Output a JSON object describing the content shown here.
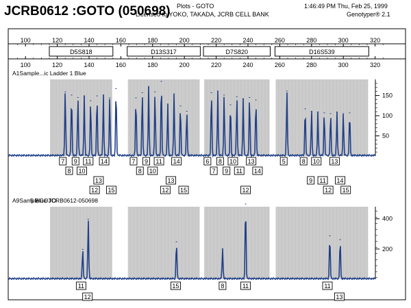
{
  "header": {
    "title": "JCRB0612 :GOTO (050698)",
    "plot_label": "Plots - GOTO",
    "license": "Licensed to YOKO, TAKADA, JCRB CELL BANK",
    "timestamp": "1:46:49 PM  Thu, Feb 25, 1999",
    "software": "Genotyper®  2.1"
  },
  "ruler": {
    "ticks": [
      "100",
      "120",
      "140",
      "160",
      "180",
      "200",
      "220",
      "240",
      "260",
      "280",
      "300",
      "320"
    ],
    "markers": [
      {
        "name": "D5S818",
        "start": 115,
        "end": 155
      },
      {
        "name": "D13S317",
        "start": 164,
        "end": 210
      },
      {
        "name": "D7S820",
        "start": 212,
        "end": 254
      },
      {
        "name": "D16S539",
        "start": 257,
        "end": 316
      }
    ],
    "color": "#000000"
  },
  "panels": [
    {
      "label": "A1Sample...ic Ladder  1 Blue",
      "label2": "",
      "y_ticks": [
        "150",
        "100",
        "50"
      ],
      "y_max": 190,
      "line_color": "#1f3f88",
      "shade_color": "#cccccc",
      "peaks": [
        {
          "bp": 125.0,
          "h": 160
        },
        {
          "bp": 129.0,
          "h": 152
        },
        {
          "bp": 133.0,
          "h": 146
        },
        {
          "bp": 137.0,
          "h": 148
        },
        {
          "bp": 141.0,
          "h": 138
        },
        {
          "bp": 145.0,
          "h": 150
        },
        {
          "bp": 149.0,
          "h": 152
        },
        {
          "bp": 153.0,
          "h": 145
        },
        {
          "bp": 157.0,
          "h": 168
        },
        {
          "bp": 169.5,
          "h": 145
        },
        {
          "bp": 173.5,
          "h": 158
        },
        {
          "bp": 177.5,
          "h": 170
        },
        {
          "bp": 181.5,
          "h": 160
        },
        {
          "bp": 185.5,
          "h": 186
        },
        {
          "bp": 189.5,
          "h": 130
        },
        {
          "bp": 193.5,
          "h": 155
        },
        {
          "bp": 197.5,
          "h": 125
        },
        {
          "bp": 201.5,
          "h": 112
        },
        {
          "bp": 217.0,
          "h": 158
        },
        {
          "bp": 221.0,
          "h": 162
        },
        {
          "bp": 225.0,
          "h": 152
        },
        {
          "bp": 229.0,
          "h": 128
        },
        {
          "bp": 233.0,
          "h": 148
        },
        {
          "bp": 237.0,
          "h": 142
        },
        {
          "bp": 241.0,
          "h": 146
        },
        {
          "bp": 245.0,
          "h": 140
        },
        {
          "bp": 264.5,
          "h": 162
        },
        {
          "bp": 276.0,
          "h": 118
        },
        {
          "bp": 280.0,
          "h": 112
        },
        {
          "bp": 284.0,
          "h": 110
        },
        {
          "bp": 288.0,
          "h": 108
        },
        {
          "bp": 292.0,
          "h": 106
        },
        {
          "bp": 296.0,
          "h": 110
        },
        {
          "bp": 300.0,
          "h": 106
        },
        {
          "bp": 304.0,
          "h": 108
        }
      ],
      "alleles": [
        {
          "label": "7",
          "bp": 123.5,
          "row": 0
        },
        {
          "label": "8",
          "bp": 127.5,
          "row": 1
        },
        {
          "label": "9",
          "bp": 131.5,
          "row": 0
        },
        {
          "label": "10",
          "bp": 135.5,
          "row": 1
        },
        {
          "label": "11",
          "bp": 139.5,
          "row": 0
        },
        {
          "label": "12",
          "bp": 143.5,
          "row": 3
        },
        {
          "label": "13",
          "bp": 146.0,
          "row": 2
        },
        {
          "label": "14",
          "bp": 149.5,
          "row": 0
        },
        {
          "label": "15",
          "bp": 154.0,
          "row": 3
        },
        {
          "label": "7",
          "bp": 168.0,
          "row": 0
        },
        {
          "label": "8",
          "bp": 172.0,
          "row": 1
        },
        {
          "label": "9",
          "bp": 176.0,
          "row": 0
        },
        {
          "label": "10",
          "bp": 180.0,
          "row": 1
        },
        {
          "label": "11",
          "bp": 184.0,
          "row": 0
        },
        {
          "label": "12",
          "bp": 188.0,
          "row": 3
        },
        {
          "label": "13",
          "bp": 191.5,
          "row": 2
        },
        {
          "label": "14",
          "bp": 195.0,
          "row": 0
        },
        {
          "label": "15",
          "bp": 199.5,
          "row": 3
        },
        {
          "label": "6",
          "bp": 214.5,
          "row": 0
        },
        {
          "label": "7",
          "bp": 218.5,
          "row": 1
        },
        {
          "label": "8",
          "bp": 222.5,
          "row": 0
        },
        {
          "label": "9",
          "bp": 226.5,
          "row": 1
        },
        {
          "label": "10",
          "bp": 230.5,
          "row": 0
        },
        {
          "label": "11",
          "bp": 234.5,
          "row": 1
        },
        {
          "label": "12",
          "bp": 238.5,
          "row": 3
        },
        {
          "label": "13",
          "bp": 242.0,
          "row": 0
        },
        {
          "label": "14",
          "bp": 246.0,
          "row": 1
        },
        {
          "label": "5",
          "bp": 262.5,
          "row": 0
        },
        {
          "label": "8",
          "bp": 275.0,
          "row": 0
        },
        {
          "label": "9",
          "bp": 279.5,
          "row": 2
        },
        {
          "label": "10",
          "bp": 283.0,
          "row": 0
        },
        {
          "label": "11",
          "bp": 287.0,
          "row": 2
        },
        {
          "label": "12",
          "bp": 290.5,
          "row": 3
        },
        {
          "label": "13",
          "bp": 294.5,
          "row": 0
        },
        {
          "label": "14",
          "bp": 298.0,
          "row": 2
        },
        {
          "label": "15",
          "bp": 301.5,
          "row": 3
        }
      ]
    },
    {
      "label": "A9SampleGOTO",
      "label2": "5 Blue     JCRB0612-050698",
      "y_ticks": [
        "400",
        "200"
      ],
      "y_max": 480,
      "line_color": "#1f3f88",
      "shade_color": "#cccccc",
      "peaks": [
        {
          "bp": 136.0,
          "h": 200
        },
        {
          "bp": 139.5,
          "h": 400
        },
        {
          "bp": 195.0,
          "h": 250
        },
        {
          "bp": 224.0,
          "h": 205
        },
        {
          "bp": 238.5,
          "h": 500
        },
        {
          "bp": 291.5,
          "h": 290
        },
        {
          "bp": 298.0,
          "h": 265
        }
      ],
      "alleles": [
        {
          "label": "11",
          "bp": 135.0,
          "row": 0
        },
        {
          "label": "12",
          "bp": 139.0,
          "row": 1
        },
        {
          "label": "15",
          "bp": 194.5,
          "row": 0
        },
        {
          "label": "8",
          "bp": 224.0,
          "row": 0
        },
        {
          "label": "11",
          "bp": 238.5,
          "row": 0
        },
        {
          "label": "11",
          "bp": 290.0,
          "row": 0
        },
        {
          "label": "13",
          "bp": 297.5,
          "row": 1
        }
      ]
    }
  ]
}
